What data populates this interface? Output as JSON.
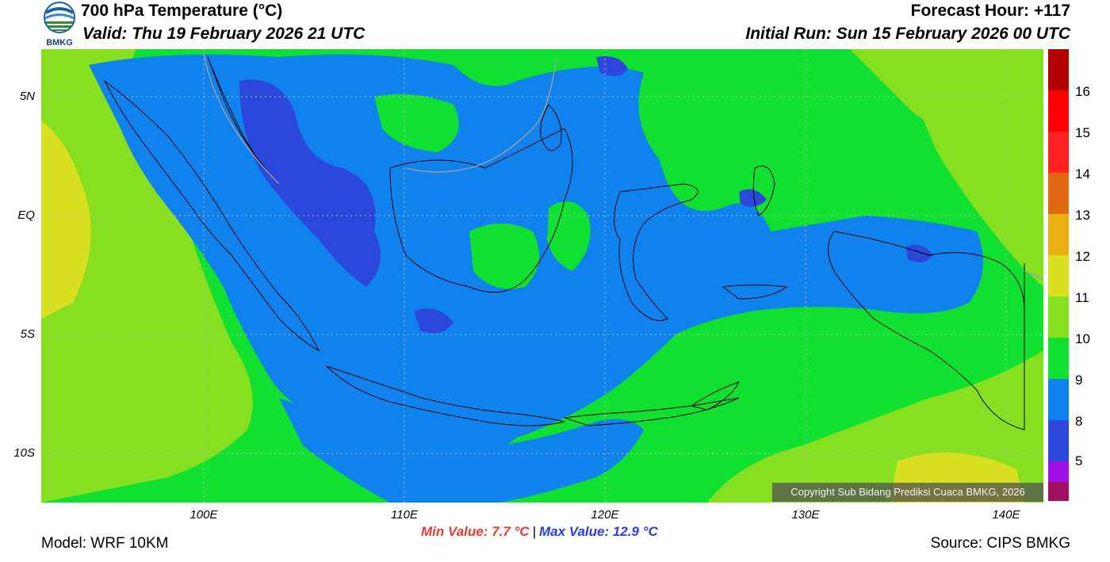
{
  "header": {
    "title": "700 hPa Temperature (°C)",
    "valid": "Valid: Thu 19 February 2026 21 UTC",
    "forecast_hour": "Forecast Hour: +117",
    "initial_run": "Initial Run: Sun 15 February 2026 00 UTC",
    "logo_text": "BMKG"
  },
  "map": {
    "lat_labels": [
      "5N",
      "EQ",
      "5S",
      "10S"
    ],
    "lon_labels": [
      "100E",
      "110E",
      "120E",
      "130E",
      "140E"
    ],
    "copyright": "Copyright Sub Bidang Prediksi Cuaca BMKG, 2026"
  },
  "colorbar": {
    "levels": [
      "16",
      "15",
      "14",
      "13",
      "12",
      "11",
      "10",
      "9",
      "8",
      "5"
    ],
    "colors": [
      "#b30000",
      "#ff0000",
      "#ff2020",
      "#e06810",
      "#e8b010",
      "#d9e020",
      "#86e020",
      "#10e030",
      "#0f82ee",
      "#2c48dc",
      "#a010e8",
      "#a01060"
    ]
  },
  "field_colors": {
    "below_9": "#2c48dc",
    "9_10": "#0f82ee",
    "10_11": "#10e030",
    "11_12": "#86e020",
    "12_13": "#d9e020"
  },
  "stats": {
    "min": "Min Value: 7.7 °C",
    "separator": "|",
    "max": "Max Value: 12.9 °C"
  },
  "footer": {
    "model": "Model: WRF 10KM",
    "source": "Source: CIPS BMKG"
  }
}
